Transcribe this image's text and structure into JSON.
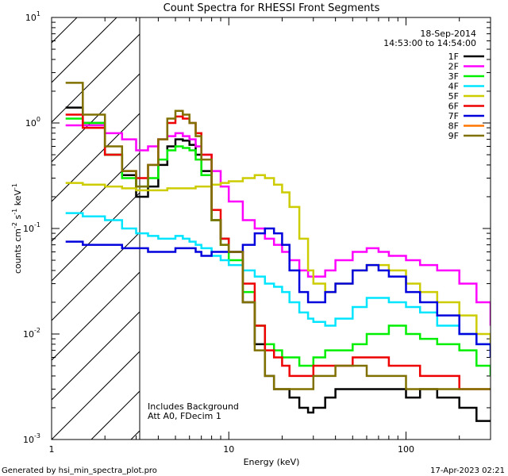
{
  "chart_data": {
    "type": "line",
    "title": "Count Spectra for RHESSI Front Segments",
    "xlabel": "Energy (keV)",
    "ylabel_parts": [
      "counts cm",
      "-2",
      " s",
      "-1",
      " keV",
      "-1"
    ],
    "xscale": "log",
    "yscale": "log",
    "xlim": [
      1,
      300
    ],
    "ylim": [
      0.001,
      10
    ],
    "x_ticks": [
      {
        "value": 1,
        "label": "1"
      },
      {
        "value": 10,
        "label": "10"
      },
      {
        "value": 100,
        "label": "100"
      }
    ],
    "y_ticks": [
      {
        "value": 0.001,
        "base": "10",
        "exp": "-3"
      },
      {
        "value": 0.01,
        "base": "10",
        "exp": "-2"
      },
      {
        "value": 0.1,
        "base": "10",
        "exp": "-1"
      },
      {
        "value": 1,
        "base": "10",
        "exp": "0"
      },
      {
        "value": 10,
        "base": "10",
        "exp": "1"
      }
    ],
    "date": "18-Sep-2014",
    "time_range": "14:53:00 to 14:54:00",
    "hatched_region_kev": [
      1,
      3
    ],
    "annotations": [
      "Includes Background",
      "Att A0, FDecim 1"
    ],
    "legend_position": "top-right",
    "series": [
      {
        "name": "1F",
        "color": "#000000",
        "x": [
          1.2,
          1.5,
          2.0,
          2.5,
          3.0,
          3.5,
          4.0,
          4.5,
          5.0,
          5.5,
          6.0,
          6.5,
          7.0,
          8.0,
          9.0,
          10,
          12,
          14,
          16,
          18,
          20,
          22,
          25,
          28,
          30,
          35,
          40,
          50,
          60,
          70,
          80,
          100,
          120,
          150,
          200,
          250,
          300
        ],
        "y": [
          1.4,
          1.0,
          0.5,
          0.32,
          0.2,
          0.25,
          0.4,
          0.6,
          0.7,
          0.68,
          0.62,
          0.5,
          0.35,
          0.12,
          0.08,
          0.06,
          0.02,
          0.008,
          0.004,
          0.003,
          0.003,
          0.0025,
          0.002,
          0.0018,
          0.002,
          0.0025,
          0.003,
          0.003,
          0.003,
          0.003,
          0.003,
          0.0025,
          0.003,
          0.0025,
          0.002,
          0.0015,
          0.0015
        ]
      },
      {
        "name": "2F",
        "color": "#ff00ff",
        "x": [
          1.2,
          1.5,
          2.0,
          2.5,
          3.0,
          3.5,
          4.0,
          4.5,
          5.0,
          5.5,
          6.0,
          6.5,
          7.0,
          8.0,
          9.0,
          10,
          12,
          14,
          16,
          18,
          20,
          22,
          25,
          28,
          30,
          35,
          40,
          50,
          60,
          70,
          80,
          100,
          120,
          150,
          200,
          250,
          300
        ],
        "y": [
          0.95,
          0.95,
          0.8,
          0.7,
          0.55,
          0.6,
          0.7,
          0.75,
          0.8,
          0.75,
          0.7,
          0.6,
          0.5,
          0.35,
          0.25,
          0.18,
          0.12,
          0.1,
          0.08,
          0.07,
          0.06,
          0.05,
          0.04,
          0.035,
          0.035,
          0.04,
          0.05,
          0.06,
          0.065,
          0.06,
          0.055,
          0.05,
          0.045,
          0.04,
          0.03,
          0.02,
          0.012
        ]
      },
      {
        "name": "3F",
        "color": "#00ee00",
        "x": [
          1.2,
          1.5,
          2.0,
          2.5,
          3.0,
          3.5,
          4.0,
          4.5,
          5.0,
          5.5,
          6.0,
          6.5,
          7.0,
          8.0,
          9.0,
          10,
          12,
          14,
          16,
          18,
          20,
          22,
          25,
          28,
          30,
          35,
          40,
          50,
          60,
          70,
          80,
          100,
          120,
          150,
          200,
          250,
          300
        ],
        "y": [
          1.1,
          1.0,
          0.5,
          0.3,
          0.25,
          0.3,
          0.45,
          0.55,
          0.6,
          0.58,
          0.55,
          0.45,
          0.32,
          0.12,
          0.07,
          0.05,
          0.025,
          0.012,
          0.008,
          0.007,
          0.006,
          0.006,
          0.005,
          0.005,
          0.006,
          0.007,
          0.007,
          0.008,
          0.01,
          0.01,
          0.012,
          0.01,
          0.009,
          0.008,
          0.007,
          0.005,
          0.004
        ]
      },
      {
        "name": "4F",
        "color": "#00e5ff",
        "x": [
          1.2,
          1.5,
          2.0,
          2.5,
          3.0,
          3.5,
          4.0,
          4.5,
          5.0,
          5.5,
          6.0,
          6.5,
          7.0,
          8.0,
          9.0,
          10,
          12,
          14,
          16,
          18,
          20,
          22,
          25,
          28,
          30,
          35,
          40,
          50,
          60,
          70,
          80,
          100,
          120,
          150,
          200,
          250,
          300
        ],
        "y": [
          0.14,
          0.13,
          0.12,
          0.1,
          0.09,
          0.085,
          0.08,
          0.08,
          0.085,
          0.08,
          0.075,
          0.07,
          0.065,
          0.055,
          0.05,
          0.045,
          0.04,
          0.035,
          0.03,
          0.028,
          0.025,
          0.02,
          0.016,
          0.014,
          0.013,
          0.012,
          0.014,
          0.018,
          0.022,
          0.022,
          0.02,
          0.018,
          0.016,
          0.012,
          0.01,
          0.008,
          0.007
        ]
      },
      {
        "name": "5F",
        "color": "#cccc00",
        "x": [
          1.2,
          1.5,
          2.0,
          2.5,
          3.0,
          3.5,
          4.0,
          4.5,
          5.0,
          5.5,
          6.0,
          6.5,
          7.0,
          8.0,
          9.0,
          10,
          12,
          14,
          16,
          18,
          20,
          22,
          25,
          28,
          30,
          35,
          40,
          50,
          60,
          70,
          80,
          100,
          120,
          150,
          200,
          250,
          300
        ],
        "y": [
          0.27,
          0.26,
          0.25,
          0.24,
          0.23,
          0.23,
          0.23,
          0.24,
          0.24,
          0.24,
          0.24,
          0.25,
          0.25,
          0.26,
          0.27,
          0.28,
          0.3,
          0.32,
          0.3,
          0.26,
          0.22,
          0.16,
          0.08,
          0.04,
          0.03,
          0.025,
          0.03,
          0.04,
          0.045,
          0.045,
          0.04,
          0.03,
          0.025,
          0.02,
          0.015,
          0.01,
          0.008
        ]
      },
      {
        "name": "6F",
        "color": "#ee0000",
        "x": [
          1.2,
          1.5,
          2.0,
          2.5,
          3.0,
          3.5,
          4.0,
          4.5,
          5.0,
          5.5,
          6.0,
          6.5,
          7.0,
          8.0,
          9.0,
          10,
          12,
          14,
          16,
          18,
          20,
          22,
          25,
          28,
          30,
          35,
          40,
          50,
          60,
          70,
          80,
          100,
          120,
          150,
          200,
          250,
          300
        ],
        "y": [
          1.2,
          0.9,
          0.5,
          0.35,
          0.3,
          0.4,
          0.7,
          1.0,
          1.15,
          1.1,
          1.0,
          0.8,
          0.5,
          0.15,
          0.08,
          0.06,
          0.03,
          0.012,
          0.007,
          0.006,
          0.005,
          0.004,
          0.004,
          0.004,
          0.005,
          0.005,
          0.005,
          0.006,
          0.006,
          0.006,
          0.005,
          0.005,
          0.004,
          0.004,
          0.003,
          0.003,
          0.003
        ]
      },
      {
        "name": "7F",
        "color": "#0000dd",
        "x": [
          1.2,
          1.5,
          2.0,
          2.5,
          3.0,
          3.5,
          4.0,
          4.5,
          5.0,
          5.5,
          6.0,
          6.5,
          7.0,
          8.0,
          9.0,
          10,
          12,
          14,
          16,
          18,
          20,
          22,
          25,
          28,
          30,
          35,
          40,
          50,
          60,
          70,
          80,
          100,
          120,
          150,
          200,
          250,
          300
        ],
        "y": [
          0.075,
          0.07,
          0.07,
          0.065,
          0.065,
          0.06,
          0.06,
          0.06,
          0.065,
          0.065,
          0.065,
          0.06,
          0.055,
          0.06,
          0.06,
          0.06,
          0.07,
          0.09,
          0.1,
          0.09,
          0.07,
          0.04,
          0.025,
          0.02,
          0.02,
          0.025,
          0.03,
          0.04,
          0.045,
          0.04,
          0.035,
          0.025,
          0.02,
          0.015,
          0.01,
          0.008,
          0.006
        ]
      },
      {
        "name": "8F",
        "color": "#ff7700",
        "x": [],
        "y": []
      },
      {
        "name": "9F",
        "color": "#807000",
        "x": [
          1.2,
          1.5,
          2.0,
          2.5,
          3.0,
          3.5,
          4.0,
          4.5,
          5.0,
          5.5,
          6.0,
          6.5,
          7.0,
          8.0,
          9.0,
          10,
          12,
          14,
          16,
          18,
          20,
          22,
          25,
          28,
          30,
          35,
          40,
          50,
          60,
          70,
          80,
          100,
          120,
          150,
          200,
          250,
          300
        ],
        "y": [
          2.4,
          1.2,
          0.6,
          0.35,
          0.25,
          0.4,
          0.7,
          1.1,
          1.3,
          1.2,
          1.0,
          0.75,
          0.45,
          0.12,
          0.07,
          0.06,
          0.02,
          0.007,
          0.004,
          0.003,
          0.003,
          0.003,
          0.003,
          0.003,
          0.004,
          0.004,
          0.005,
          0.005,
          0.004,
          0.004,
          0.004,
          0.003,
          0.003,
          0.003,
          0.003,
          0.003,
          0.003
        ]
      }
    ]
  },
  "footer": {
    "generated_by": "Generated by hsi_min_spectra_plot.pro",
    "timestamp": "17-Apr-2023 02:21"
  }
}
